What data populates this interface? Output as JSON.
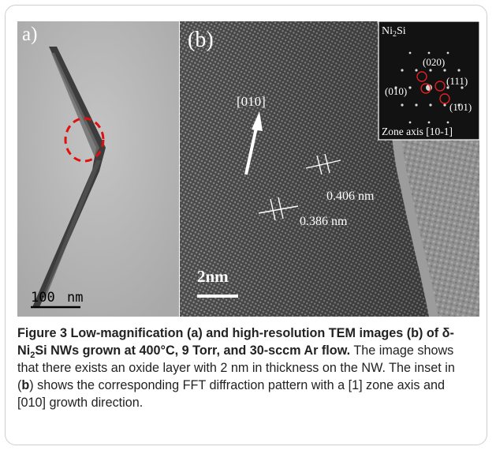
{
  "panel_a": {
    "label": "a)",
    "scale_bar_value": "100",
    "scale_bar_unit": "nm"
  },
  "panel_b": {
    "label": "(b)",
    "direction_label": "[010]",
    "spacing_1": "0.406 nm",
    "spacing_2": "0.386 nm",
    "scale_bar": "2nm",
    "inset": {
      "title_ni": "Ni",
      "title_sub": "2",
      "title_si": "Si",
      "spot_020": "(020)",
      "spot_010": "(010)",
      "spot_111": "(111)",
      "spot_101": "(101)",
      "zone_axis": "Zone axis [10-1]"
    }
  },
  "caption": {
    "head_1": "Figure 3 Low-magnification (a) and high-resolution TEM images (b) of δ-Ni",
    "head_sub": "2",
    "head_2": "Si NWs grown at 400°C, 9 Torr, and 30-sccm Ar flow.",
    "body_1": " The image shows that there exists an oxide layer with 2 nm in thickness on the NW. The inset in (",
    "body_b": "b",
    "body_2": ") shows the corresponding FFT diffraction pattern with a [1] zone axis and [010] growth direction."
  }
}
